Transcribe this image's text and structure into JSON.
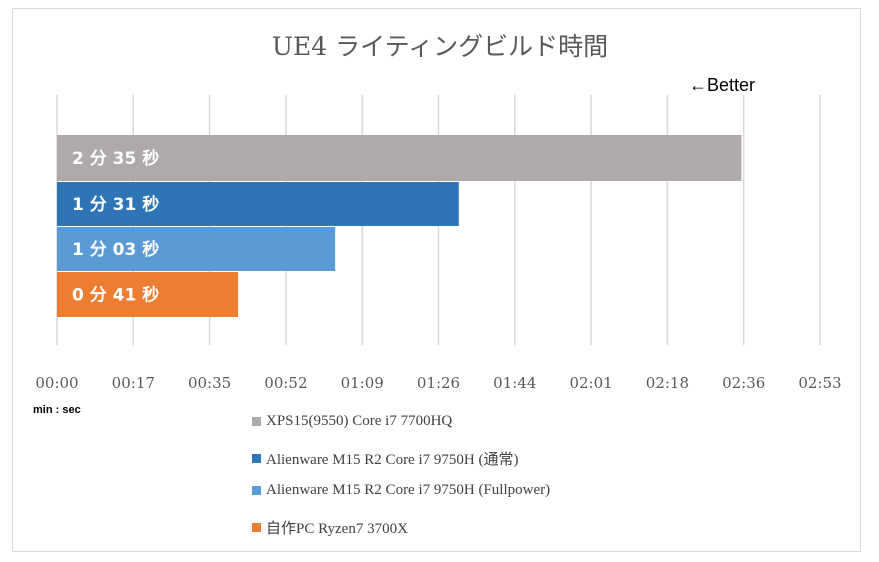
{
  "chart_data": {
    "type": "bar",
    "orientation": "horizontal",
    "title": "UE4 ライティングビルド時間",
    "annotation": "←Better",
    "xlabel": "min : sec",
    "xlim": [
      0,
      172.8
    ],
    "x_tick_labels": [
      "00:00",
      "00:17",
      "00:35",
      "00:52",
      "01:09",
      "01:26",
      "01:44",
      "02:01",
      "02:18",
      "02:36",
      "02:53"
    ],
    "grid": true,
    "legend_position": "bottom",
    "series": [
      {
        "name": "XPS15(9550) Core i7 7700HQ",
        "value": 155,
        "label": "2 分 35 秒",
        "color": "#aeaaaa"
      },
      {
        "name": "Alienware M15 R2 Core i7 9750H (通常)",
        "value": 91,
        "label": "1 分 31 秒",
        "color": "#2e75b6"
      },
      {
        "name": "Alienware M15 R2 Core i7 9750H (Fullpower)",
        "value": 63,
        "label": "1 分 03 秒",
        "color": "#5b9bd5"
      },
      {
        "name": "自作PC Ryzen7 3700X",
        "value": 41,
        "label": "0 分 41 秒",
        "color": "#ed7d31"
      }
    ]
  }
}
